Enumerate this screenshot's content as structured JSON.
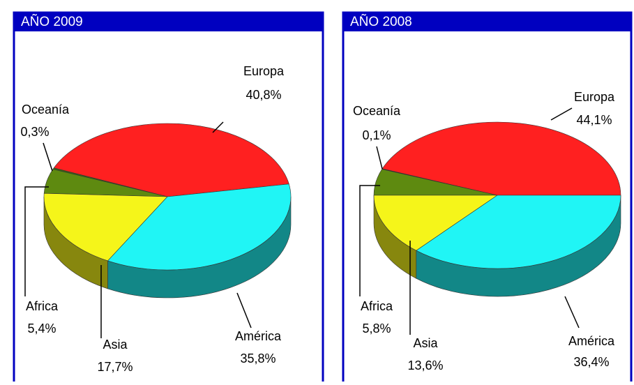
{
  "chart_data": [
    {
      "type": "pie3d",
      "title": "AÑO 2009",
      "categories": [
        "Europa",
        "Oceanía",
        "Africa",
        "Asia",
        "América"
      ],
      "values": [
        40.8,
        0.3,
        5.4,
        17.7,
        35.8
      ],
      "value_labels": [
        "40,8%",
        "0,3%",
        "5,4%",
        "17,7%",
        "35,8%"
      ],
      "colors": [
        "#ff2020",
        "#3a6a10",
        "#5e8a10",
        "#f5f51a",
        "#20f5f5"
      ]
    },
    {
      "type": "pie3d",
      "title": "AÑO 2008",
      "categories": [
        "Europa",
        "Oceanía",
        "Africa",
        "Asia",
        "América"
      ],
      "values": [
        44.1,
        0.1,
        5.8,
        13.6,
        36.4
      ],
      "value_labels": [
        "44,1%",
        "0,1%",
        "5,8%",
        "13,6%",
        "36,4%"
      ],
      "colors": [
        "#ff2020",
        "#3a6a10",
        "#5e8a10",
        "#f5f51a",
        "#20f5f5"
      ]
    }
  ]
}
